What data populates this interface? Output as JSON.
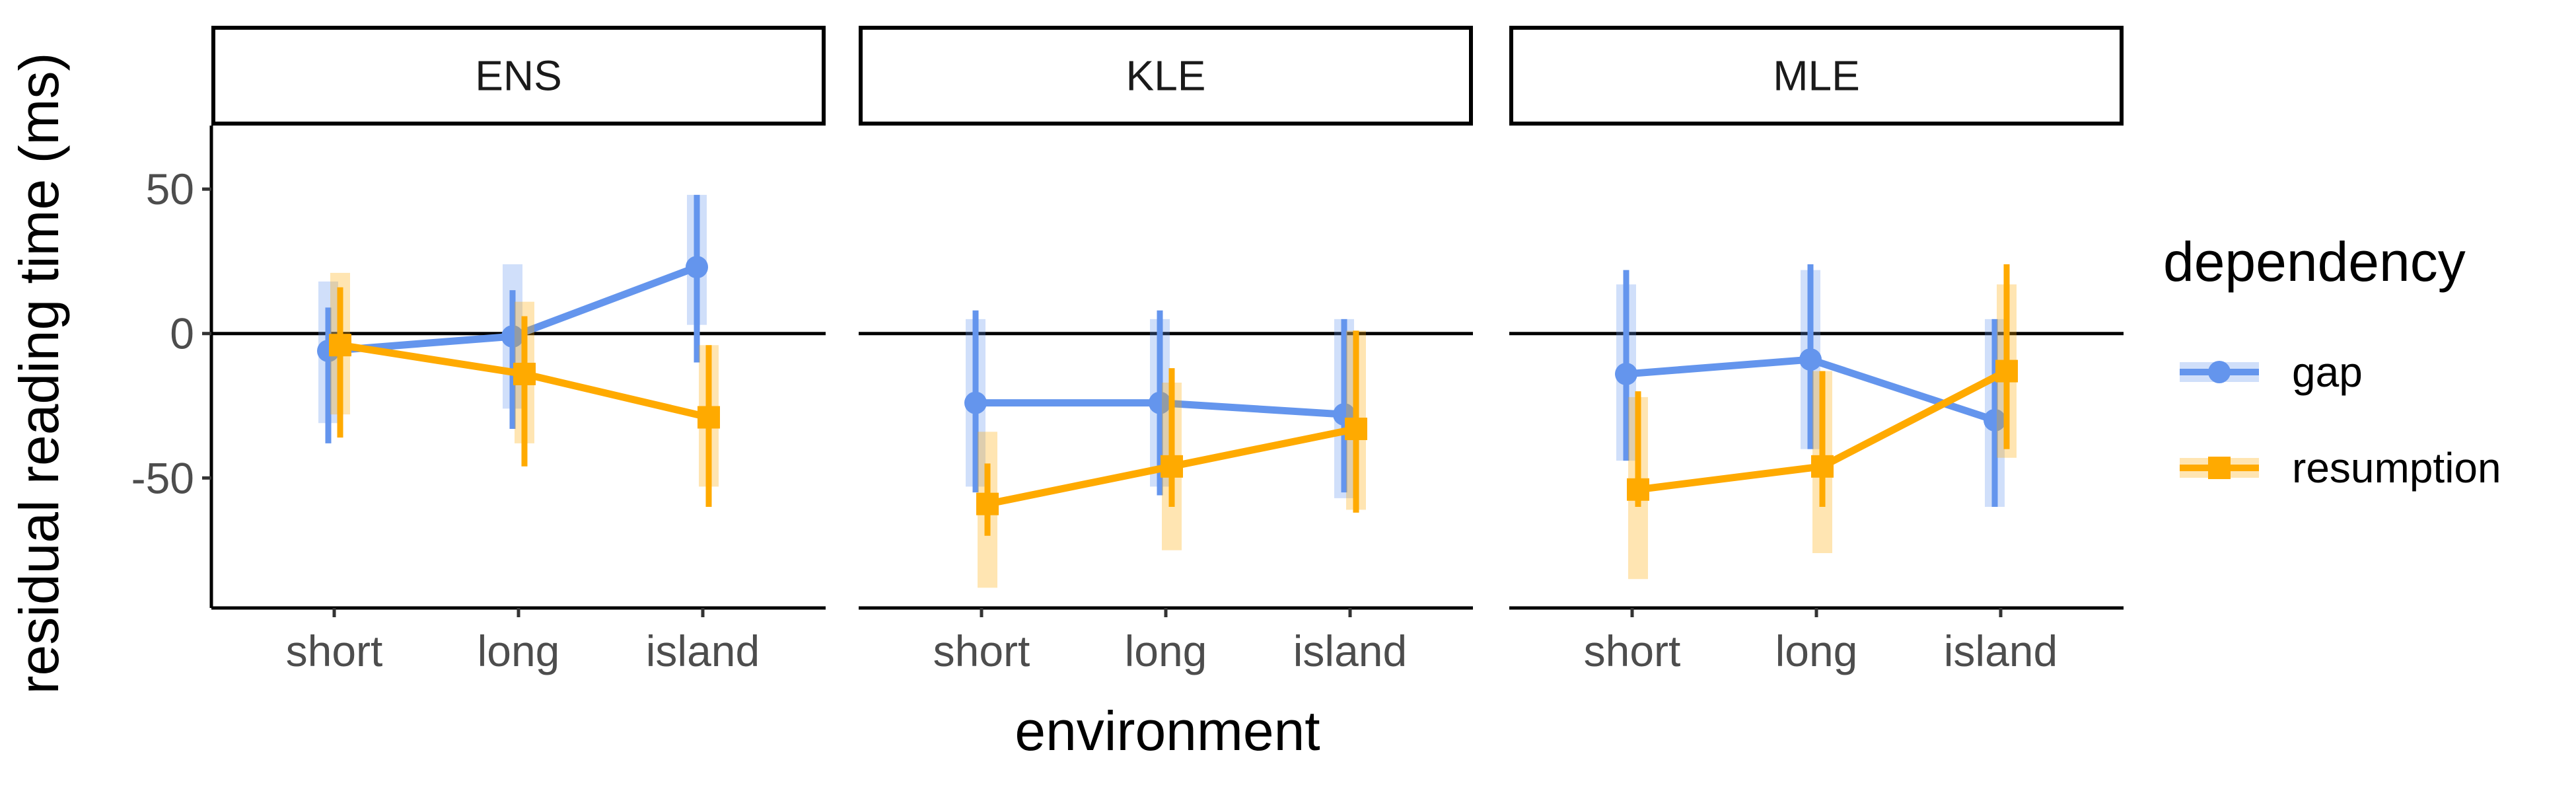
{
  "chart_data": {
    "type": "line",
    "xlabel": "environment",
    "ylabel": "residual reading time (ms)",
    "categories": [
      "short",
      "long",
      "island"
    ],
    "ylim": [
      -95,
      72
    ],
    "yticks": [
      -50,
      0,
      50
    ],
    "ytick_labels": [
      "-50",
      "0",
      "50"
    ],
    "grid": false,
    "zero_line": true,
    "legend": {
      "title": "dependency",
      "position": "right",
      "entries": [
        {
          "name": "gap",
          "color": "#6495ED",
          "shape": "circle"
        },
        {
          "name": "resumption",
          "color": "#FFAA00",
          "shape": "square"
        }
      ]
    },
    "panels": [
      {
        "label": "ENS",
        "series": [
          {
            "name": "gap",
            "values": [
              -6,
              -1,
              23
            ],
            "ci_thin": [
              [
                -38,
                9
              ],
              [
                -33,
                15
              ],
              [
                -10,
                48
              ]
            ],
            "ci_thick": [
              [
                -31,
                18
              ],
              [
                -26,
                24
              ],
              [
                3,
                48
              ]
            ]
          },
          {
            "name": "resumption",
            "values": [
              -4,
              -14,
              -29
            ],
            "ci_thin": [
              [
                -36,
                16
              ],
              [
                -46,
                6
              ],
              [
                -60,
                -4
              ]
            ],
            "ci_thick": [
              [
                -28,
                21
              ],
              [
                -38,
                11
              ],
              [
                -53,
                -4
              ]
            ]
          }
        ]
      },
      {
        "label": "KLE",
        "series": [
          {
            "name": "gap",
            "values": [
              -24,
              -24,
              -28
            ],
            "ci_thin": [
              [
                -55,
                8
              ],
              [
                -56,
                8
              ],
              [
                -55,
                5
              ]
            ],
            "ci_thick": [
              [
                -53,
                5
              ],
              [
                -53,
                5
              ],
              [
                -57,
                5
              ]
            ]
          },
          {
            "name": "resumption",
            "values": [
              -59,
              -46,
              -33
            ],
            "ci_thin": [
              [
                -70,
                -45
              ],
              [
                -60,
                -12
              ],
              [
                -62,
                1
              ]
            ],
            "ci_thick": [
              [
                -88,
                -34
              ],
              [
                -75,
                -17
              ],
              [
                -61,
                1
              ]
            ]
          }
        ]
      },
      {
        "label": "MLE",
        "series": [
          {
            "name": "gap",
            "values": [
              -14,
              -9,
              -30
            ],
            "ci_thin": [
              [
                -44,
                22
              ],
              [
                -40,
                24
              ],
              [
                -60,
                5
              ]
            ],
            "ci_thick": [
              [
                -44,
                17
              ],
              [
                -40,
                22
              ],
              [
                -60,
                5
              ]
            ]
          },
          {
            "name": "resumption",
            "values": [
              -54,
              -46,
              -13
            ],
            "ci_thin": [
              [
                -60,
                -20
              ],
              [
                -60,
                -13
              ],
              [
                -40,
                24
              ]
            ],
            "ci_thick": [
              [
                -85,
                -22
              ],
              [
                -76,
                -13
              ],
              [
                -43,
                17
              ]
            ]
          }
        ]
      }
    ]
  }
}
